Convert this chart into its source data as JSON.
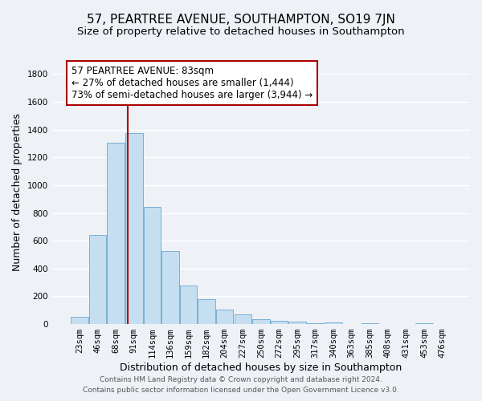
{
  "title": "57, PEARTREE AVENUE, SOUTHAMPTON, SO19 7JN",
  "subtitle": "Size of property relative to detached houses in Southampton",
  "xlabel": "Distribution of detached houses by size in Southampton",
  "ylabel": "Number of detached properties",
  "bar_color": "#c5dff0",
  "bar_edge_color": "#7aafd4",
  "vline_color": "#aa0000",
  "categories": [
    "23sqm",
    "46sqm",
    "68sqm",
    "91sqm",
    "114sqm",
    "136sqm",
    "159sqm",
    "182sqm",
    "204sqm",
    "227sqm",
    "250sqm",
    "272sqm",
    "295sqm",
    "317sqm",
    "340sqm",
    "363sqm",
    "385sqm",
    "408sqm",
    "431sqm",
    "453sqm",
    "476sqm"
  ],
  "values": [
    55,
    640,
    1305,
    1375,
    845,
    525,
    280,
    180,
    105,
    70,
    35,
    25,
    20,
    5,
    10,
    0,
    5,
    0,
    0,
    5,
    0
  ],
  "ylim": [
    0,
    1900
  ],
  "yticks": [
    0,
    200,
    400,
    600,
    800,
    1000,
    1200,
    1400,
    1600,
    1800
  ],
  "vline_x_idx": 2.65,
  "annotation_title": "57 PEARTREE AVENUE: 83sqm",
  "annotation_line1": "← 27% of detached houses are smaller (1,444)",
  "annotation_line2": "73% of semi-detached houses are larger (3,944) →",
  "footer_line1": "Contains HM Land Registry data © Crown copyright and database right 2024.",
  "footer_line2": "Contains public sector information licensed under the Open Government Licence v3.0.",
  "background_color": "#eef2f7",
  "grid_color": "#ffffff",
  "title_fontsize": 11,
  "subtitle_fontsize": 9.5,
  "axis_label_fontsize": 9,
  "tick_fontsize": 7.5,
  "footer_fontsize": 6.5,
  "annotation_fontsize": 8.5
}
